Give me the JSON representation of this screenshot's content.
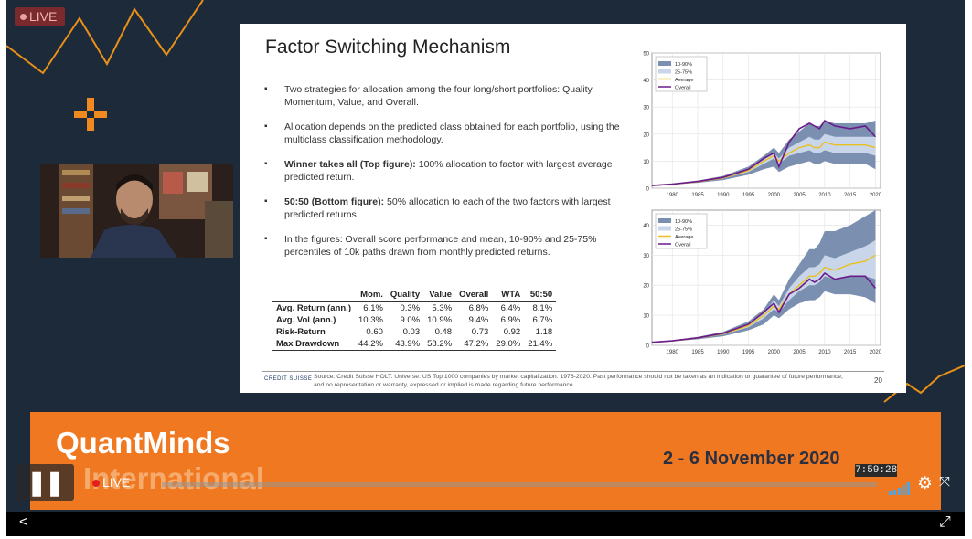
{
  "player": {
    "live_badge": "LIVE",
    "control_live": "LIVE",
    "time_tooltip": "7:59:28",
    "icons": {
      "pause": "pause-icon",
      "signal": "signal-bars-icon",
      "settings": "gear-icon",
      "fullscreen": "fullscreen-icon",
      "share": "share-icon",
      "expand": "expand-icon"
    }
  },
  "slide": {
    "title": "Factor Switching Mechanism",
    "bullets": [
      {
        "bold": "",
        "text": "Two strategies for allocation among the four long/short portfolios: Quality, Momentum, Value, and Overall."
      },
      {
        "bold": "",
        "text": "Allocation depends on the predicted class obtained for each portfolio, using the multiclass classification methodology."
      },
      {
        "bold": "Winner takes all (Top figure):",
        "text": " 100% allocation to factor with largest average predicted return."
      },
      {
        "bold": "50:50 (Bottom figure):",
        "text": " 50% allocation to each of the two factors with largest predicted returns."
      },
      {
        "bold": "",
        "text": "In the figures: Overall score performance and mean, 10-90% and 25-75% percentiles of 10k paths drawn from monthly predicted returns."
      }
    ],
    "table": {
      "columns": [
        "",
        "Mom.",
        "Quality",
        "Value",
        "Overall",
        "WTA",
        "50:50"
      ],
      "rows": [
        [
          "Avg. Return (ann.)",
          "6.1%",
          "0.3%",
          "5.3%",
          "6.8%",
          "6.4%",
          "8.1%"
        ],
        [
          "Avg. Vol (ann.)",
          "10.3%",
          "9.0%",
          "10.9%",
          "9.4%",
          "6.9%",
          "6.7%"
        ],
        [
          "Risk-Return",
          "0.60",
          "0.03",
          "0.48",
          "0.73",
          "0.92",
          "1.18"
        ],
        [
          "Max Drawdown",
          "44.2%",
          "43.9%",
          "58.2%",
          "47.2%",
          "29.0%",
          "21.4%"
        ]
      ]
    },
    "logo": "CREDIT SUISSE",
    "source": "Source: Credit Suisse HOLT. Universe: US Top 1000 companies by market capitalization. 1976-2020. Past performance should not be taken as an indication or guarantee of future performance, and no representation or warranty, expressed or implied is made regarding future performance.",
    "page_number": "20"
  },
  "banner": {
    "line1": "QuantMinds",
    "line2": "International",
    "dates": "2 - 6 November 2020"
  },
  "colors": {
    "banner": "#f07820",
    "background": "#1c2a3a",
    "band_10_90": "#7b8fb0",
    "band_25_75": "#c9d6ea",
    "average": "#e8c020",
    "overall": "#6a1a8a"
  },
  "chart_data": [
    {
      "type": "area",
      "x_ticks": [
        1980,
        1985,
        1990,
        1995,
        2000,
        2005,
        2010,
        2015,
        2020
      ],
      "y_ticks": [
        0,
        10,
        20,
        30,
        40,
        50
      ],
      "xlim": [
        1976,
        2021
      ],
      "ylim": [
        0,
        50
      ],
      "legend": [
        "10-90%",
        "25-75%",
        "Average",
        "Overall"
      ],
      "legend_position": "top-left",
      "grid": true,
      "x": [
        1976,
        1980,
        1985,
        1990,
        1995,
        1998,
        2000,
        2001,
        2003,
        2005,
        2007,
        2008,
        2009,
        2010,
        2012,
        2015,
        2018,
        2020
      ],
      "series": [
        {
          "name": "10-90%",
          "low": [
            1,
            1.3,
            2,
            3,
            5,
            7,
            8,
            6,
            8,
            9,
            10,
            9,
            9,
            10,
            9,
            9,
            9,
            7
          ],
          "high": [
            1,
            1.6,
            2.8,
            4.5,
            8,
            12,
            15,
            13,
            18,
            21,
            24,
            23,
            23,
            25,
            24,
            24,
            24,
            25
          ]
        },
        {
          "name": "25-75%",
          "low": [
            1,
            1.4,
            2.3,
            3.6,
            6,
            9,
            11,
            9,
            12,
            13,
            14,
            13,
            13,
            14,
            13,
            13,
            13,
            12
          ]
        },
        {
          "name": "25-75%",
          "high": [
            1,
            1.5,
            2.5,
            4,
            7,
            10.5,
            13,
            11,
            15,
            17,
            19,
            18,
            18,
            20,
            19,
            19,
            19,
            19
          ]
        },
        {
          "name": "Average",
          "values": [
            1,
            1.45,
            2.4,
            3.8,
            6.5,
            10,
            12,
            10,
            13,
            15,
            16,
            15,
            15,
            17,
            16,
            16,
            16,
            15
          ]
        },
        {
          "name": "Overall",
          "values": [
            1,
            1.5,
            2.5,
            4,
            7,
            11,
            13,
            8,
            17,
            22,
            24,
            23,
            22,
            25,
            23,
            22,
            23,
            19
          ]
        }
      ]
    },
    {
      "type": "area",
      "x_ticks": [
        1980,
        1985,
        1990,
        1995,
        2000,
        2005,
        2010,
        2015,
        2020
      ],
      "y_ticks": [
        0,
        10,
        20,
        30,
        40
      ],
      "xlim": [
        1976,
        2021
      ],
      "ylim": [
        0,
        45
      ],
      "legend": [
        "10-90%",
        "25-75%",
        "Average",
        "Overall"
      ],
      "legend_position": "top-left",
      "grid": true,
      "x": [
        1976,
        1980,
        1985,
        1990,
        1995,
        1998,
        2000,
        2001,
        2003,
        2005,
        2007,
        2008,
        2009,
        2010,
        2012,
        2015,
        2018,
        2020
      ],
      "series": [
        {
          "name": "10-90%",
          "low": [
            1,
            1.3,
            2,
            3,
            5,
            7,
            10,
            9,
            12,
            14,
            15,
            15,
            16,
            18,
            17,
            17,
            16,
            14
          ],
          "high": [
            1,
            1.6,
            2.8,
            4.5,
            8,
            12,
            17,
            15,
            22,
            27,
            32,
            32,
            34,
            38,
            38,
            40,
            43,
            45
          ]
        },
        {
          "name": "25-75%",
          "low": [
            1,
            1.4,
            2.3,
            3.6,
            6,
            9,
            12,
            11,
            15,
            18,
            20,
            20,
            21,
            23,
            22,
            23,
            23,
            22
          ]
        },
        {
          "name": "25-75%",
          "high": [
            1,
            1.5,
            2.5,
            4,
            7,
            10.5,
            15,
            13,
            19,
            23,
            26,
            26,
            27,
            30,
            29,
            31,
            33,
            35
          ]
        },
        {
          "name": "Average",
          "values": [
            1,
            1.45,
            2.4,
            3.8,
            6.5,
            10,
            13,
            12,
            17,
            20,
            23,
            23,
            24,
            26,
            25,
            27,
            28,
            30
          ]
        },
        {
          "name": "Overall",
          "values": [
            1,
            1.5,
            2.5,
            4,
            7,
            11,
            14,
            11,
            17,
            19,
            22,
            21,
            22,
            24,
            22,
            23,
            23,
            19
          ]
        }
      ]
    }
  ]
}
